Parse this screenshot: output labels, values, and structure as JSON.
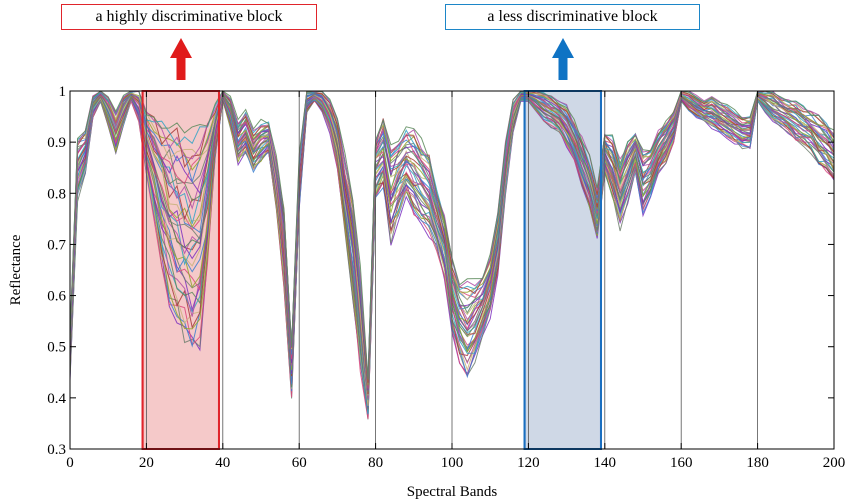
{
  "annotations": [
    {
      "label": "a highly discriminative block",
      "color": "#e0242b",
      "fill": "#f5c9c9",
      "x_range": [
        19,
        39
      ]
    },
    {
      "label": "a less discriminative block",
      "color": "#1a6fc0",
      "fill": "#cfd8e6",
      "x_range": [
        119,
        139
      ]
    }
  ],
  "chart_data": {
    "type": "line",
    "title": "",
    "xlabel": "Spectral Bands",
    "ylabel": "Reflectance",
    "xlim": [
      0,
      200
    ],
    "ylim": [
      0.3,
      1
    ],
    "xticks": [
      0,
      20,
      40,
      60,
      80,
      100,
      120,
      140,
      160,
      180,
      200
    ],
    "yticks": [
      0.3,
      0.4,
      0.5,
      0.6,
      0.7,
      0.8,
      0.9,
      1
    ],
    "ytick_labels": [
      "0.3",
      "0.4",
      "0.5",
      "0.6",
      "0.7",
      "0.8",
      "0.9",
      "1"
    ],
    "block_boundaries": [
      20,
      40,
      60,
      80,
      100,
      120,
      140,
      160,
      180
    ],
    "grid": false,
    "legend": "none",
    "num_spectra": 40,
    "series_colors": [
      "#7b2fbe",
      "#6f7f6f",
      "#d9477a",
      "#3a7fd0",
      "#8fa82a",
      "#c8b37a",
      "#a63a3a",
      "#2fa3c6",
      "#b04fa8",
      "#5a8a5a"
    ],
    "bands": [
      0,
      2,
      4,
      6,
      8,
      10,
      12,
      14,
      16,
      18,
      20,
      22,
      24,
      26,
      28,
      30,
      32,
      34,
      36,
      38,
      40,
      42,
      44,
      46,
      48,
      50,
      52,
      54,
      56,
      58,
      60,
      62,
      64,
      66,
      68,
      70,
      72,
      74,
      76,
      78,
      80,
      82,
      84,
      86,
      88,
      90,
      92,
      94,
      96,
      98,
      100,
      102,
      104,
      106,
      108,
      110,
      112,
      114,
      116,
      118,
      120,
      122,
      124,
      126,
      128,
      130,
      132,
      134,
      136,
      138,
      140,
      142,
      144,
      146,
      148,
      150,
      152,
      154,
      156,
      158,
      160,
      162,
      164,
      166,
      168,
      170,
      172,
      174,
      176,
      178,
      180,
      182,
      184,
      186,
      188,
      190,
      192,
      194,
      196,
      198,
      200
    ],
    "mean_reflectance": [
      0.48,
      0.85,
      0.88,
      0.97,
      0.99,
      0.96,
      0.92,
      0.96,
      0.99,
      0.97,
      0.9,
      0.85,
      0.8,
      0.76,
      0.74,
      0.72,
      0.7,
      0.72,
      0.8,
      0.92,
      0.99,
      0.96,
      0.9,
      0.92,
      0.88,
      0.9,
      0.91,
      0.82,
      0.7,
      0.45,
      0.82,
      0.98,
      0.99,
      0.98,
      0.95,
      0.9,
      0.8,
      0.7,
      0.55,
      0.4,
      0.85,
      0.88,
      0.8,
      0.83,
      0.86,
      0.84,
      0.82,
      0.8,
      0.75,
      0.7,
      0.6,
      0.55,
      0.53,
      0.55,
      0.58,
      0.62,
      0.7,
      0.85,
      0.95,
      0.99,
      0.99,
      0.98,
      0.97,
      0.96,
      0.95,
      0.93,
      0.9,
      0.86,
      0.82,
      0.76,
      0.88,
      0.85,
      0.8,
      0.84,
      0.88,
      0.82,
      0.84,
      0.88,
      0.9,
      0.93,
      0.99,
      0.98,
      0.97,
      0.96,
      0.96,
      0.95,
      0.94,
      0.93,
      0.92,
      0.92,
      0.99,
      0.98,
      0.97,
      0.96,
      0.95,
      0.94,
      0.93,
      0.92,
      0.9,
      0.89,
      0.87
    ],
    "spread": [
      0.04,
      0.06,
      0.04,
      0.02,
      0.01,
      0.03,
      0.04,
      0.03,
      0.01,
      0.03,
      0.06,
      0.1,
      0.14,
      0.17,
      0.19,
      0.2,
      0.2,
      0.2,
      0.14,
      0.05,
      0.01,
      0.03,
      0.04,
      0.04,
      0.04,
      0.04,
      0.03,
      0.05,
      0.08,
      0.05,
      0.05,
      0.02,
      0.01,
      0.02,
      0.03,
      0.05,
      0.07,
      0.1,
      0.1,
      0.04,
      0.06,
      0.07,
      0.09,
      0.08,
      0.07,
      0.08,
      0.08,
      0.08,
      0.06,
      0.06,
      0.07,
      0.08,
      0.09,
      0.08,
      0.06,
      0.06,
      0.06,
      0.05,
      0.03,
      0.01,
      0.01,
      0.02,
      0.03,
      0.03,
      0.03,
      0.04,
      0.04,
      0.05,
      0.05,
      0.05,
      0.04,
      0.06,
      0.07,
      0.06,
      0.04,
      0.06,
      0.05,
      0.04,
      0.04,
      0.03,
      0.01,
      0.02,
      0.02,
      0.02,
      0.03,
      0.03,
      0.03,
      0.03,
      0.03,
      0.03,
      0.01,
      0.02,
      0.03,
      0.03,
      0.03,
      0.04,
      0.04,
      0.04,
      0.05,
      0.05,
      0.05
    ]
  }
}
